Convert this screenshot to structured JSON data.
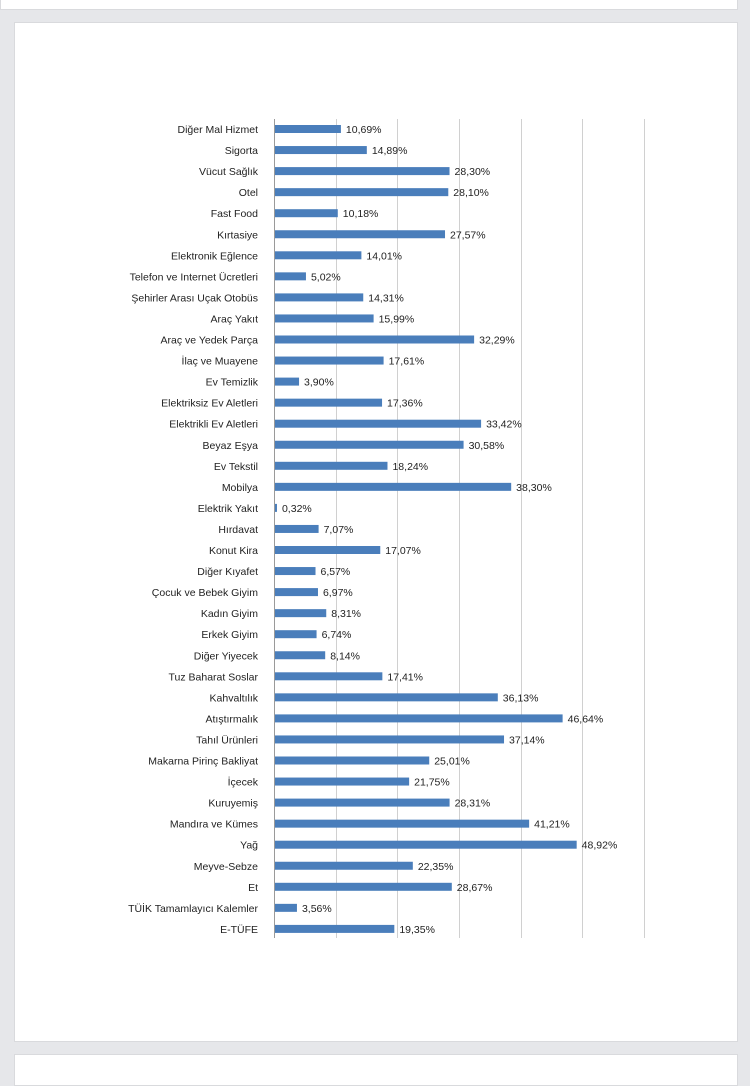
{
  "chart_data": {
    "type": "bar",
    "orientation": "horizontal",
    "bar_color": "#4a7ebb",
    "xlim": [
      0,
      60
    ],
    "grid": true,
    "categories": [
      "Diğer Mal Hizmet",
      "Sigorta",
      "Vücut Sağlık",
      "Otel",
      "Fast Food",
      "Kırtasiye",
      "Elektronik Eğlence",
      "Telefon ve Internet Ücretleri",
      "Şehirler Arası Uçak Otobüs",
      "Araç Yakıt",
      "Araç ve Yedek Parça",
      "İlaç ve Muayene",
      "Ev Temizlik",
      "Elektriksiz Ev Aletleri",
      "Elektrikli Ev Aletleri",
      "Beyaz Eşya",
      "Ev Tekstil",
      "Mobilya",
      "Elektrik Yakıt",
      "Hırdavat",
      "Konut Kira",
      "Diğer Kıyafet",
      "Çocuk ve Bebek Giyim",
      "Kadın Giyim",
      "Erkek Giyim",
      "Diğer Yiyecek",
      "Tuz Baharat Soslar",
      "Kahvaltılık",
      "Atıştırmalık",
      "Tahıl Ürünleri",
      "Makarna Pirinç Bakliyat",
      "İçecek",
      "Kuruyemiş",
      "Mandıra ve Kümes",
      "Yağ",
      "Meyve-Sebze",
      "Et",
      "TÜİK Tamamlayıcı Kalemler",
      "E-TÜFE"
    ],
    "values": [
      10.69,
      14.89,
      28.3,
      28.1,
      10.18,
      27.57,
      14.01,
      5.02,
      14.31,
      15.99,
      32.29,
      17.61,
      3.9,
      17.36,
      33.42,
      30.58,
      18.24,
      38.3,
      0.32,
      7.07,
      17.07,
      6.57,
      6.97,
      8.31,
      6.74,
      8.14,
      17.41,
      36.13,
      46.64,
      37.14,
      25.01,
      21.75,
      28.31,
      41.21,
      48.92,
      22.35,
      28.67,
      3.56,
      19.35
    ],
    "value_labels": [
      "10,69%",
      "14,89%",
      "28,30%",
      "28,10%",
      "10,18%",
      "27,57%",
      "14,01%",
      "5,02%",
      "14,31%",
      "15,99%",
      "32,29%",
      "17,61%",
      "3,90%",
      "17,36%",
      "33,42%",
      "30,58%",
      "18,24%",
      "38,30%",
      "0,32%",
      "7,07%",
      "17,07%",
      "6,57%",
      "6,97%",
      "8,31%",
      "6,74%",
      "8,14%",
      "17,41%",
      "36,13%",
      "46,64%",
      "37,14%",
      "25,01%",
      "21,75%",
      "28,31%",
      "41,21%",
      "48,92%",
      "22,35%",
      "28,67%",
      "3,56%",
      "19,35%"
    ]
  }
}
